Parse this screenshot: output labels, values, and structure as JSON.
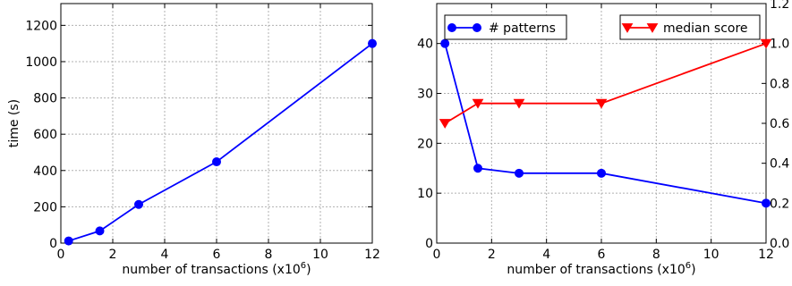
{
  "chart_data": [
    {
      "type": "line",
      "xlabel": "number of transactions (x10",
      "xlabel_exp": "6",
      "xlabel_close": ")",
      "ylabel": "time (s)",
      "xlim": [
        0,
        12
      ],
      "ylim": [
        0,
        1320
      ],
      "xticks": [
        0,
        2,
        4,
        6,
        8,
        10,
        12
      ],
      "yticks": [
        0,
        200,
        400,
        600,
        800,
        1000,
        1200
      ],
      "grid": true,
      "series": [
        {
          "color": "#0000ff",
          "marker": "circle",
          "x": [
            0.3,
            1.5,
            3,
            6,
            12
          ],
          "y": [
            12,
            67,
            213,
            448,
            1100
          ]
        }
      ]
    },
    {
      "type": "line",
      "xlabel": "number of transactions (x10",
      "xlabel_exp": "6",
      "xlabel_close": ")",
      "xlim": [
        0,
        12
      ],
      "ylim_left": [
        0,
        48
      ],
      "ylim_right": [
        0,
        1.2
      ],
      "xticks": [
        0,
        2,
        4,
        6,
        8,
        10,
        12
      ],
      "yticks_left": [
        0,
        10,
        20,
        30,
        40
      ],
      "yticks_right": [
        "0.0",
        "0.2",
        "0.4",
        "0.6",
        "0.8",
        "1.0",
        "1.2"
      ],
      "yticks_right_values": [
        0,
        0.2,
        0.4,
        0.6,
        0.8,
        1.0,
        1.2
      ],
      "grid": true,
      "series": [
        {
          "name": "# patterns",
          "axis": "left",
          "color": "#0000ff",
          "marker": "circle",
          "x": [
            0.3,
            1.5,
            3,
            6,
            12
          ],
          "y": [
            40,
            15,
            14,
            14,
            8
          ]
        },
        {
          "name": "median score",
          "axis": "right",
          "color": "#ff0000",
          "marker": "triangle-down",
          "x": [
            0.3,
            1.5,
            3,
            6,
            12
          ],
          "y": [
            0.6,
            0.7,
            0.7,
            0.7,
            1.0
          ]
        }
      ],
      "legend": [
        "top-left",
        "top-right"
      ]
    }
  ]
}
